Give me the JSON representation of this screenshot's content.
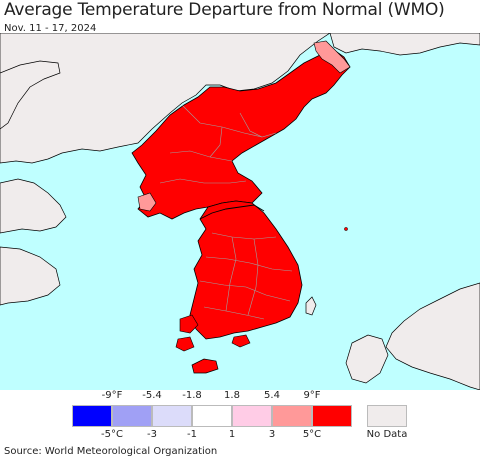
{
  "header": {
    "title": "Average Temperature Departure from Normal (WMO)",
    "date_range": "Nov. 11 - 17, 2024"
  },
  "map": {
    "ocean_color": "#bfffff",
    "land_nodata_color": "#f0ecec",
    "anomaly_color_main": "#ff0000",
    "anomaly_color_light": "#ff9999",
    "border_color": "#000000"
  },
  "legend": {
    "fahrenheit_labels": [
      "-9°F",
      "-5.4",
      "-1.8",
      "1.8",
      "5.4",
      "9°F"
    ],
    "celsius_labels": [
      "-5°C",
      "-3",
      "-1",
      "1",
      "3",
      "5°C"
    ],
    "colors": [
      "#0000ff",
      "#a0a0f5",
      "#dcdcfa",
      "#ffffff",
      "#ffcce6",
      "#ff9999",
      "#ff0000"
    ],
    "nodata_color": "#f0ecec",
    "nodata_label": "No Data"
  },
  "footer": {
    "source": "Source: World Meteorological Organization"
  }
}
